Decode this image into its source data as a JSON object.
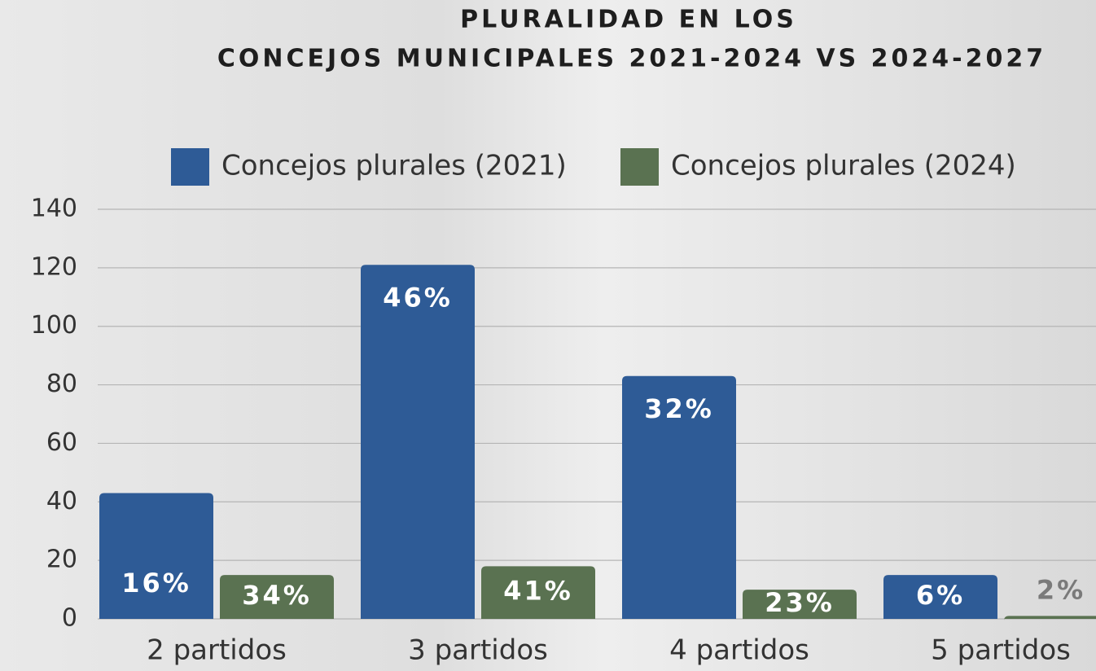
{
  "chart_data": {
    "type": "bar",
    "title": [
      "PLURALIDAD EN LOS",
      "CONCEJOS MUNICIPALES 2021-2024 VS 2024-2027"
    ],
    "categories": [
      "2 partidos",
      "3 partidos",
      "4 partidos",
      "5 partidos"
    ],
    "series": [
      {
        "name": "Concejos plurales (2021)",
        "color": "#2e5b96",
        "values": [
          43,
          121,
          83,
          15
        ],
        "percent_labels": [
          "16%",
          "46%",
          "32%",
          "6%"
        ]
      },
      {
        "name": "Concejos plurales (2024)",
        "color": "#5a7251",
        "values": [
          15,
          18,
          10,
          1
        ],
        "percent_labels": [
          "34%",
          "41%",
          "23%",
          "2%"
        ]
      }
    ],
    "ylim": [
      0,
      140
    ],
    "yticks": [
      0,
      20,
      40,
      60,
      80,
      100,
      120,
      140
    ],
    "grid": true
  }
}
